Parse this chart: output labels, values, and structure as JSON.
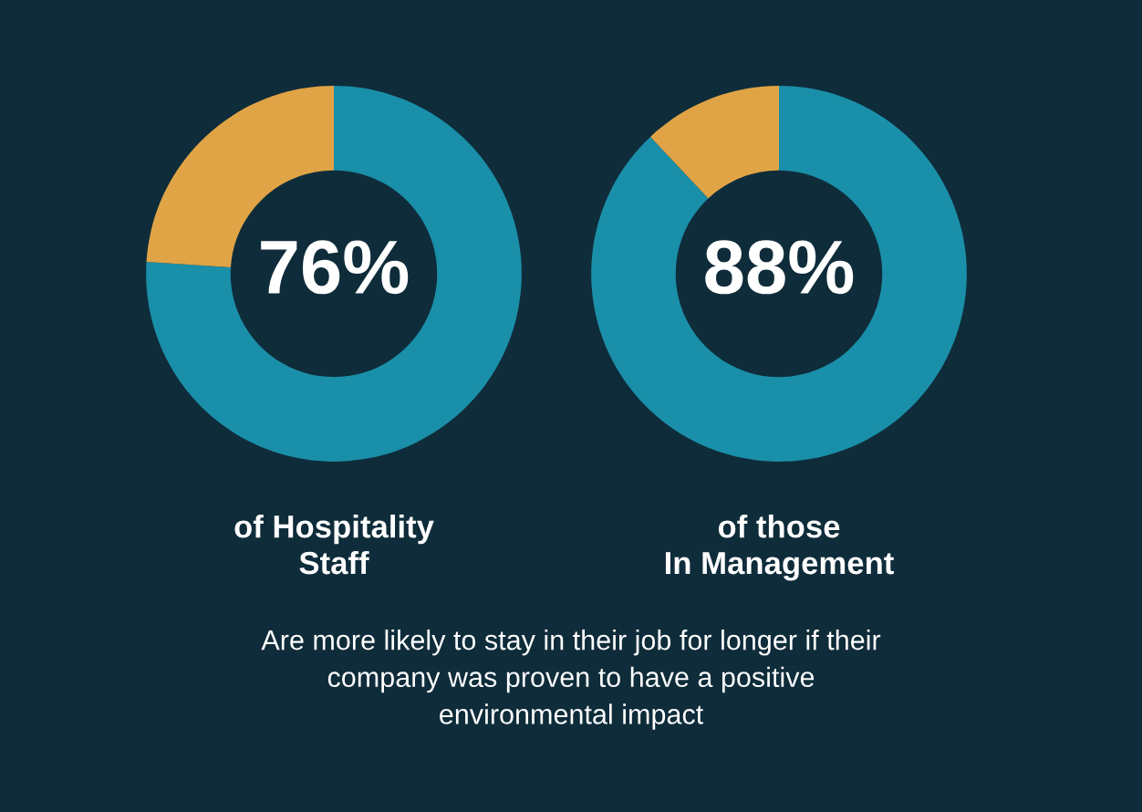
{
  "chart_data": [
    {
      "type": "donut",
      "categories": [
        null,
        null
      ],
      "values": [
        76,
        24
      ],
      "colors": [
        "#1a8fa9",
        "#e0a446"
      ],
      "value_labels": [
        "76%",
        null
      ],
      "xlabel": "of Hospitality\nStaff",
      "annotations": [
        "Are more likely to stay in their job for longer if their\ncompany was proven to have a positive\nenvironmental impact"
      ]
    },
    {
      "type": "donut",
      "categories": [
        null,
        null
      ],
      "values": [
        88,
        12
      ],
      "colors": [
        "#1a8fa9",
        "#e0a446"
      ],
      "value_labels": [
        "88%",
        null
      ],
      "xlabel": "of those\nIn Management"
    }
  ]
}
